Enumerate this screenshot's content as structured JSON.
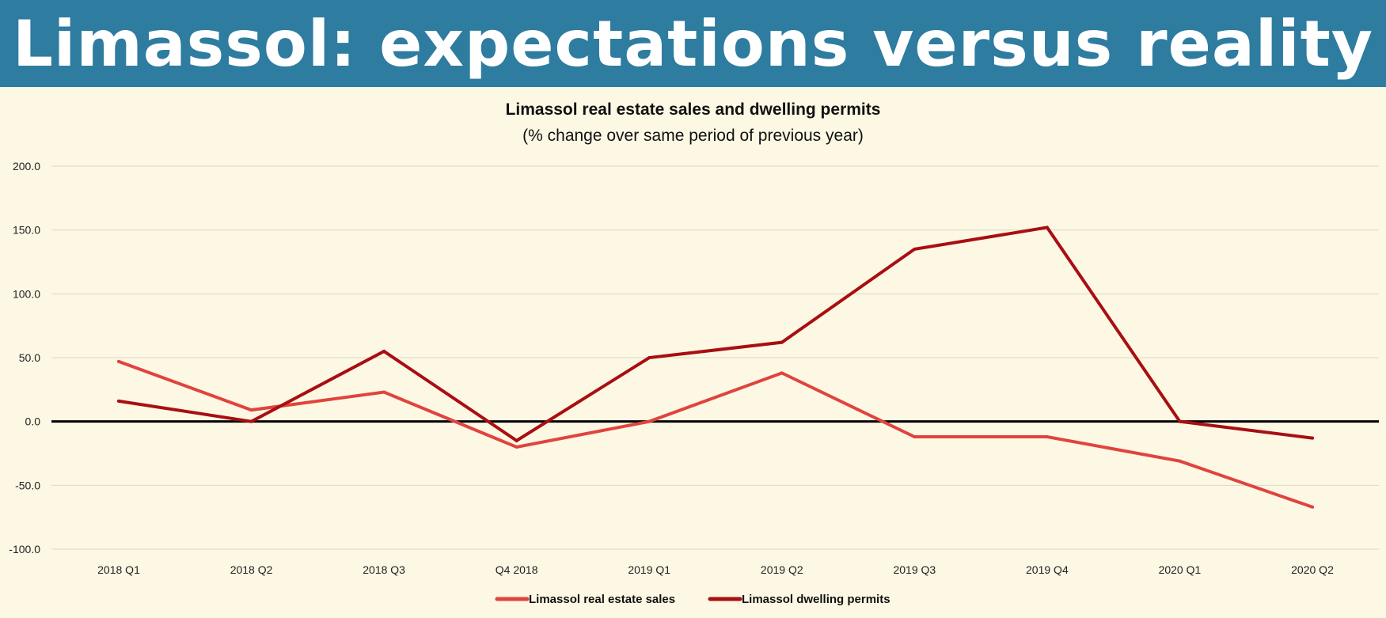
{
  "banner": {
    "title": "Limassol: expectations versus reality"
  },
  "colors": {
    "banner": "#2e7ca0",
    "background": "#fdf8e4",
    "sales": "#e0443e",
    "permits": "#a80f12"
  },
  "chart_data": {
    "type": "line",
    "title": "Limassol real estate sales and dwelling permits",
    "subtitle": "(% change over same period of previous year)",
    "xlabel": "",
    "ylabel": "",
    "ylim": [
      -100,
      200
    ],
    "ytick_step": 50,
    "grid": true,
    "legend": "bottom",
    "categories": [
      "2018 Q1",
      "2018 Q2",
      "2018 Q3",
      "Q4 2018",
      "2019 Q1",
      "2019 Q2",
      "2019 Q3",
      "2019 Q4",
      "2020 Q1",
      "2020 Q2"
    ],
    "series": [
      {
        "name": "Limassol real estate sales",
        "color": "#e0443e",
        "values": [
          47,
          9,
          23,
          -20,
          0,
          38,
          -12,
          -12,
          -31,
          -67
        ]
      },
      {
        "name": "Limassol dwelling permits",
        "color": "#a80f12",
        "values": [
          16,
          0,
          55,
          -15,
          50,
          62,
          135,
          152,
          0,
          -13
        ]
      }
    ]
  }
}
